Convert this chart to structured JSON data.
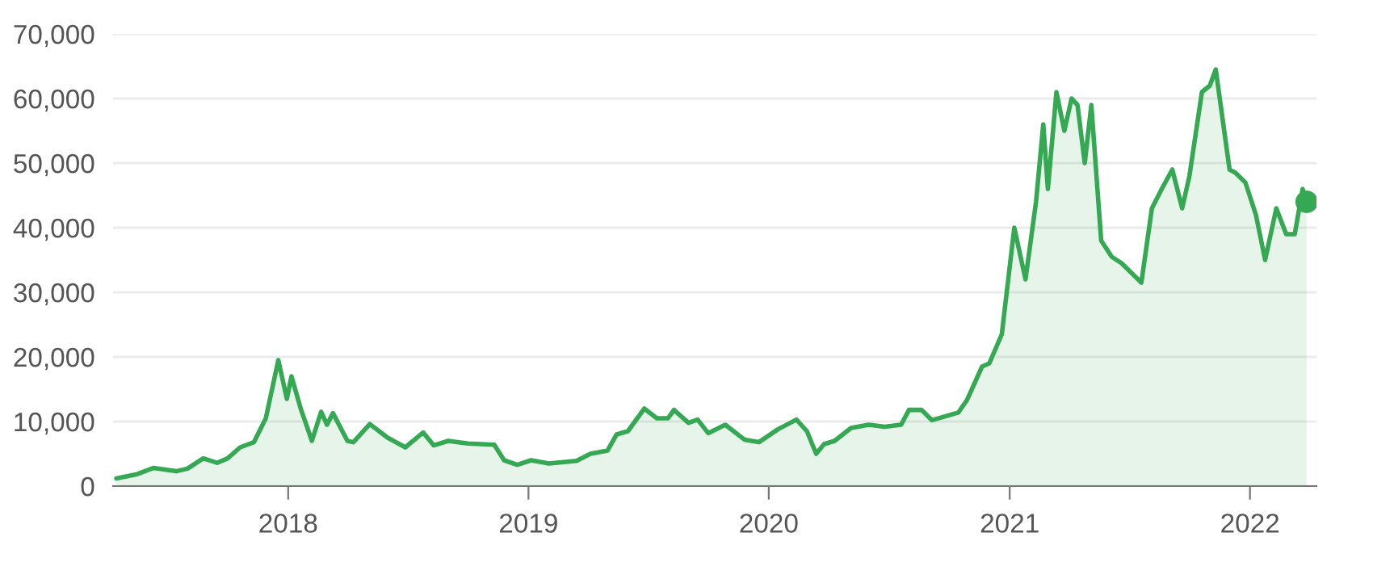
{
  "chart_data": {
    "type": "area",
    "series": [
      {
        "color": "#34a853",
        "x": [
          "2017-04-15",
          "2017-05-15",
          "2017-06-10",
          "2017-07-15",
          "2017-08-01",
          "2017-08-25",
          "2017-09-15",
          "2017-10-01",
          "2017-10-20",
          "2017-11-10",
          "2017-11-28",
          "2017-12-17",
          "2017-12-30",
          "2018-01-06",
          "2018-01-20",
          "2018-02-06",
          "2018-02-20",
          "2018-03-01",
          "2018-03-10",
          "2018-04-01",
          "2018-04-10",
          "2018-05-05",
          "2018-06-01",
          "2018-06-28",
          "2018-07-25",
          "2018-08-10",
          "2018-09-01",
          "2018-10-01",
          "2018-11-10",
          "2018-11-25",
          "2018-12-15",
          "2019-01-05",
          "2019-02-01",
          "2019-03-15",
          "2019-04-05",
          "2019-05-01",
          "2019-05-15",
          "2019-06-01",
          "2019-06-26",
          "2019-07-15",
          "2019-08-01",
          "2019-08-10",
          "2019-09-01",
          "2019-09-15",
          "2019-10-01",
          "2019-10-27",
          "2019-11-25",
          "2019-12-17",
          "2020-01-15",
          "2020-02-12",
          "2020-02-28",
          "2020-03-13",
          "2020-03-25",
          "2020-04-10",
          "2020-05-05",
          "2020-06-01",
          "2020-06-25",
          "2020-07-20",
          "2020-08-01",
          "2020-08-20",
          "2020-09-05",
          "2020-09-25",
          "2020-10-15",
          "2020-10-28",
          "2020-11-20",
          "2020-12-01",
          "2020-12-20",
          "2021-01-08",
          "2021-01-25",
          "2021-02-10",
          "2021-02-21",
          "2021-02-28",
          "2021-03-13",
          "2021-03-25",
          "2021-04-05",
          "2021-04-14",
          "2021-04-25",
          "2021-05-05",
          "2021-05-20",
          "2021-06-05",
          "2021-06-20",
          "2021-07-05",
          "2021-07-20",
          "2021-08-05",
          "2021-08-20",
          "2021-09-05",
          "2021-09-20",
          "2021-10-01",
          "2021-10-20",
          "2021-11-01",
          "2021-11-10",
          "2021-12-01",
          "2021-12-10",
          "2021-12-25",
          "2022-01-10",
          "2022-01-24",
          "2022-02-10",
          "2022-02-25",
          "2022-03-10",
          "2022-03-22",
          "2022-03-28"
        ],
        "values": [
          1200,
          1800,
          2800,
          2300,
          2700,
          4300,
          3600,
          4300,
          6000,
          6800,
          10500,
          19500,
          13500,
          17000,
          12000,
          7000,
          11500,
          9500,
          11300,
          7000,
          6800,
          9600,
          7500,
          6000,
          8300,
          6300,
          7000,
          6600,
          6400,
          4000,
          3300,
          4000,
          3500,
          3900,
          5000,
          5500,
          8000,
          8500,
          12000,
          10500,
          10500,
          11800,
          9800,
          10300,
          8200,
          9500,
          7200,
          6800,
          8800,
          10300,
          8500,
          5000,
          6500,
          7000,
          9000,
          9500,
          9200,
          9500,
          11800,
          11800,
          10200,
          10800,
          11400,
          13300,
          18500,
          19000,
          23500,
          40000,
          32000,
          44000,
          56000,
          46000,
          61000,
          55000,
          60000,
          59000,
          50000,
          59000,
          38000,
          35500,
          34500,
          33000,
          31500,
          43000,
          46000,
          49000,
          43000,
          48000,
          61000,
          62000,
          64500,
          49000,
          48500,
          47000,
          42000,
          35000,
          43000,
          39000,
          39000,
          46000,
          44000
        ]
      },
      {
        "type": "scatter",
        "color": "#34a853",
        "x": [
          "2022-03-28"
        ],
        "values": [
          44000
        ]
      }
    ],
    "xlim": [
      "2017-04-10",
      "2022-04-12"
    ],
    "xticks": [
      {
        "value": "2018-01-01",
        "label": "2018"
      },
      {
        "value": "2019-01-01",
        "label": "2019"
      },
      {
        "value": "2020-01-01",
        "label": "2020"
      },
      {
        "value": "2021-01-01",
        "label": "2021"
      },
      {
        "value": "2022-01-01",
        "label": "2022"
      }
    ],
    "ylim": [
      0,
      70000
    ],
    "yticks": [
      {
        "value": 0,
        "label": "0"
      },
      {
        "value": 10000,
        "label": "10,000"
      },
      {
        "value": 20000,
        "label": "20,000"
      },
      {
        "value": 30000,
        "label": "30,000"
      },
      {
        "value": 40000,
        "label": "40,000"
      },
      {
        "value": 50000,
        "label": "50,000"
      },
      {
        "value": 60000,
        "label": "60,000"
      },
      {
        "value": 70000,
        "label": "70,000"
      }
    ],
    "grid": "y"
  }
}
